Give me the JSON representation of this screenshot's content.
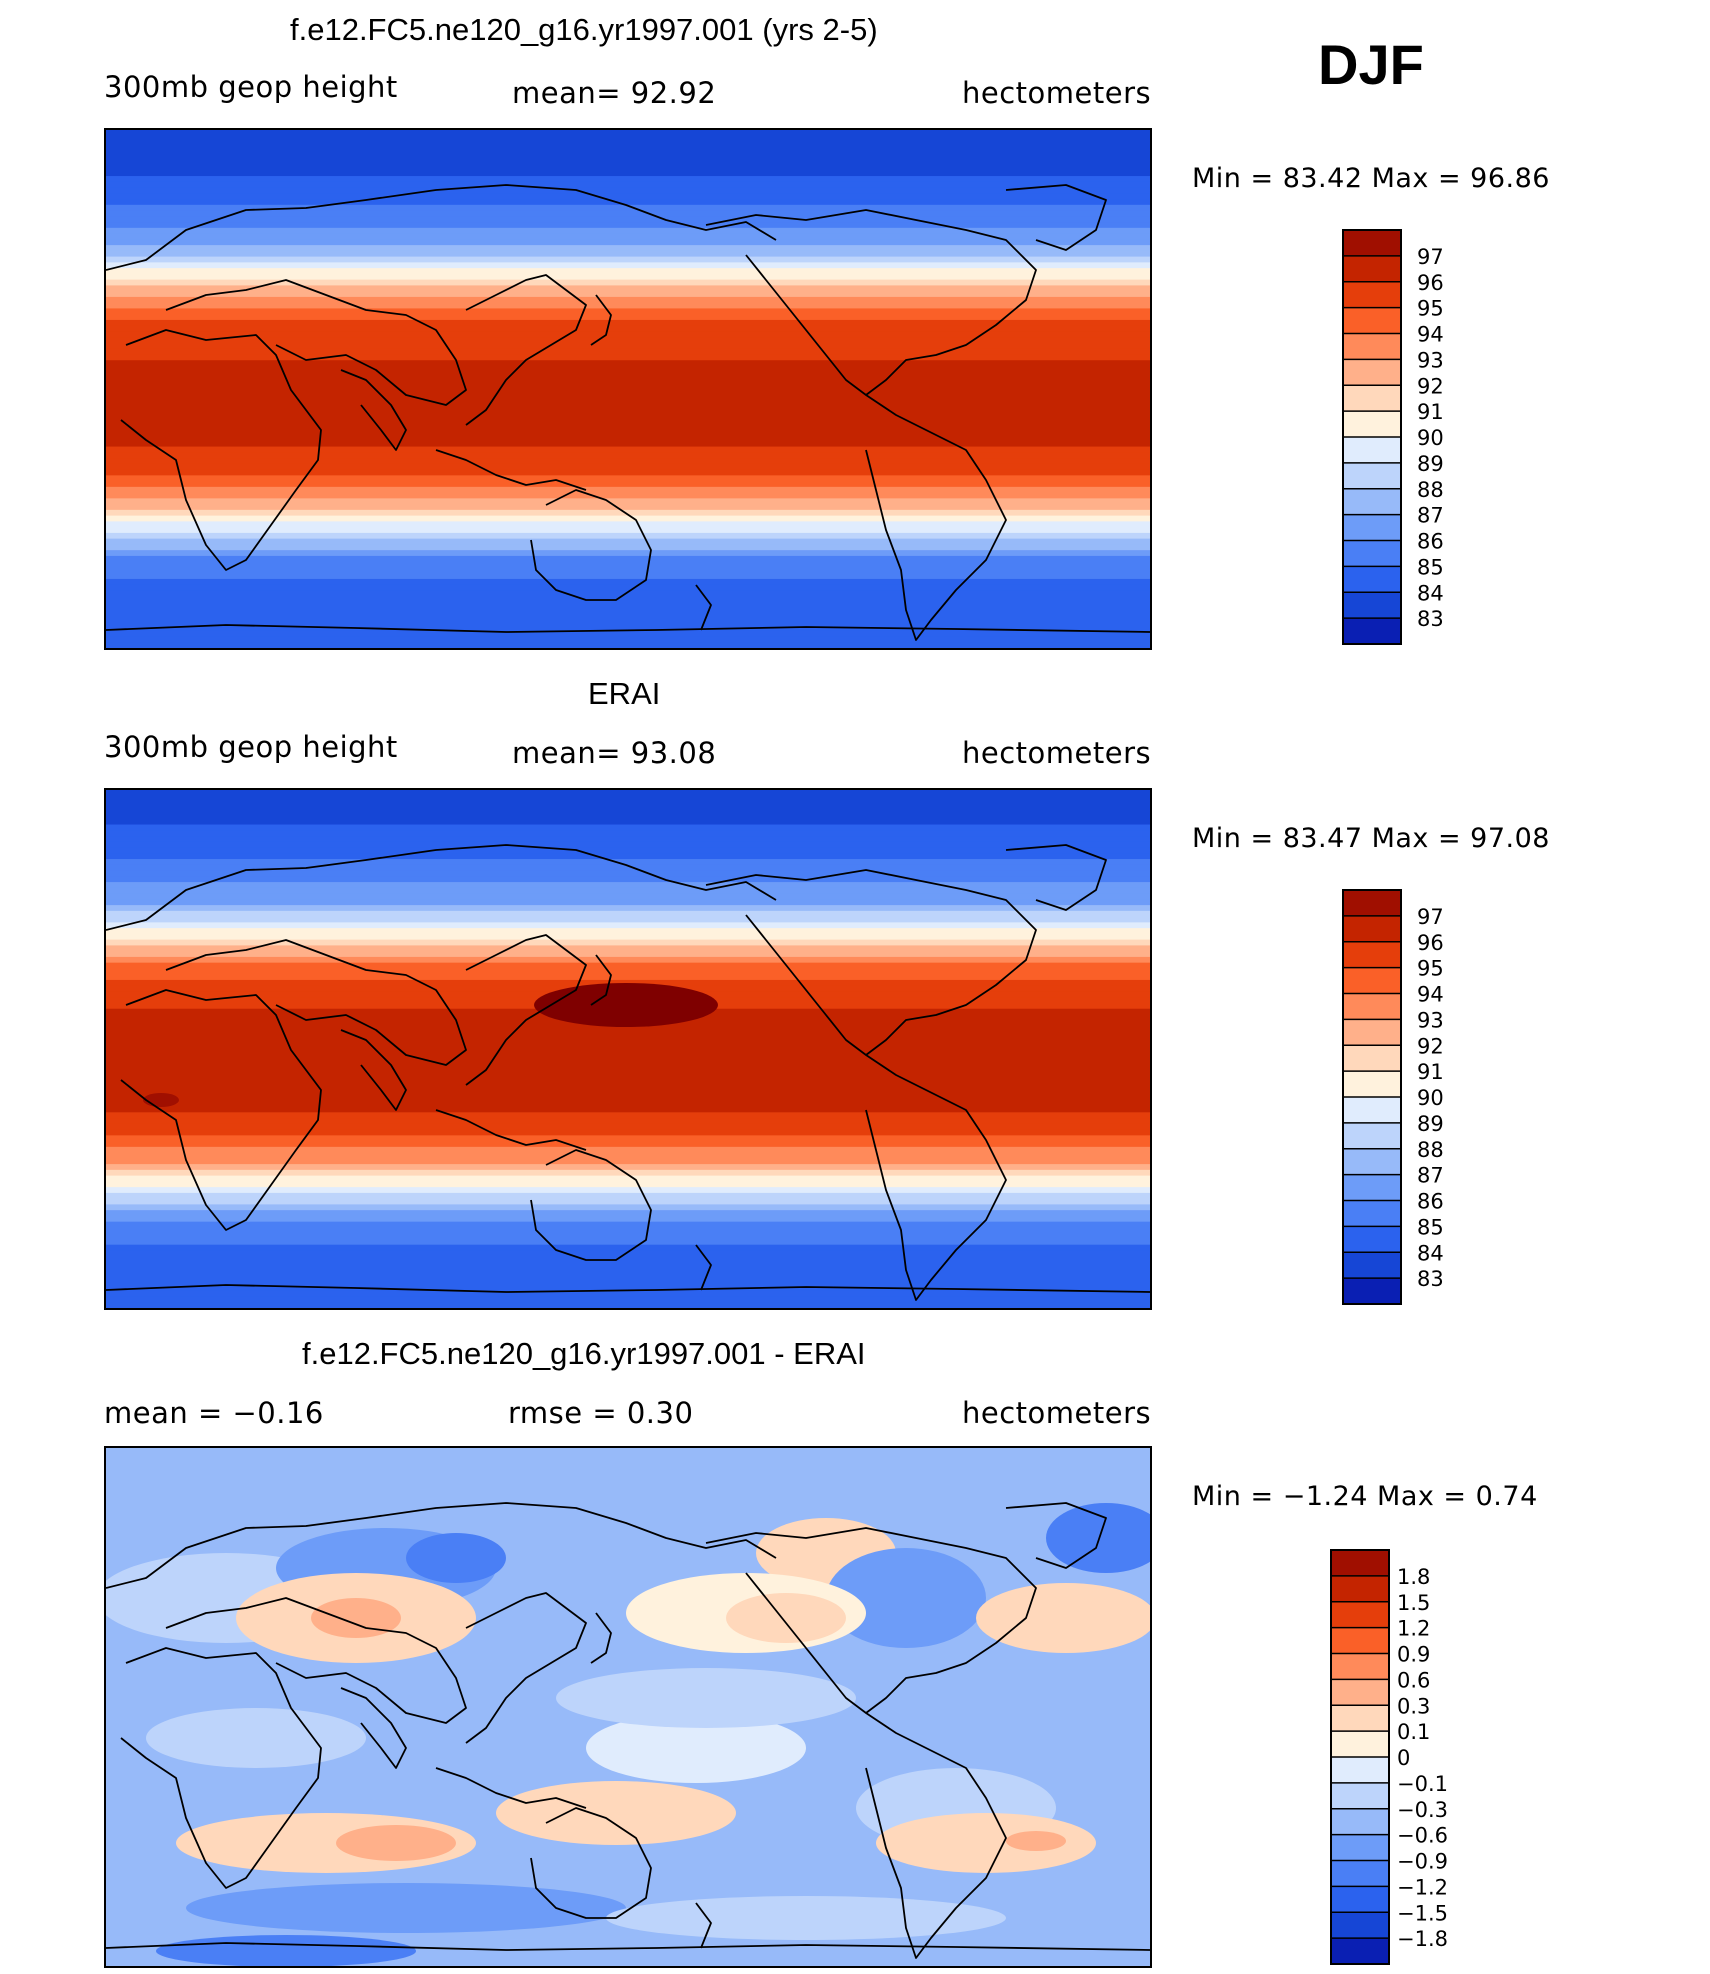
{
  "season": "DJF",
  "colors": {
    "height_scale": [
      "#00007f",
      "#0a1fb3",
      "#1646d6",
      "#2b62ee",
      "#4a7ff5",
      "#6d9cf8",
      "#97baf9",
      "#bdd4fb",
      "#e0ecfd",
      "#fff2dd",
      "#ffd8bb",
      "#ffb08a",
      "#ff8a5a",
      "#fa6028",
      "#e53e0b",
      "#c42400",
      "#a00f00",
      "#7f0000"
    ],
    "diff_scale": [
      "#00007f",
      "#0a1fb3",
      "#1646d6",
      "#2b62ee",
      "#4a7ff5",
      "#6d9cf8",
      "#97baf9",
      "#bdd4fb",
      "#e0ecfd",
      "#fff2dd",
      "#ffd8bb",
      "#ffb08a",
      "#ff8a5a",
      "#fa6028",
      "#e53e0b",
      "#c42400",
      "#a00f00",
      "#7f0000"
    ]
  },
  "chart_data": [
    {
      "type": "heatmap",
      "title": "f.e12.FC5.ne120_g16.yr1997.001 (yrs 2-5)",
      "left_label": "300mb  geop  height",
      "mean_label": "mean=   92.92",
      "units": "hectometers",
      "minmax_label": "Min  =    83.42  Max  =    96.86",
      "min": 83.42,
      "max": 96.86,
      "levels": [
        "97",
        "96",
        "95",
        "94",
        "93",
        "92",
        "91",
        "90",
        "89",
        "88",
        "87",
        "86",
        "85",
        "84",
        "83"
      ],
      "profile": [
        {
          "lat": 90,
          "value": 83.3
        },
        {
          "lat": 70,
          "value": 84.2
        },
        {
          "lat": 50,
          "value": 86.9
        },
        {
          "lat": 40,
          "value": 90.4
        },
        {
          "lat": 30,
          "value": 93.8
        },
        {
          "lat": 20,
          "value": 95.6
        },
        {
          "lat": 0,
          "value": 96.4
        },
        {
          "lat": -20,
          "value": 96.1
        },
        {
          "lat": -30,
          "value": 94.9
        },
        {
          "lat": -40,
          "value": 92.6
        },
        {
          "lat": -50,
          "value": 88.8
        },
        {
          "lat": -60,
          "value": 85.6
        },
        {
          "lat": -70,
          "value": 84.6
        },
        {
          "lat": -90,
          "value": 84.2
        }
      ]
    },
    {
      "type": "heatmap",
      "title": "ERAI",
      "left_label": "300mb  geop  height",
      "mean_label": "mean=   93.08",
      "units": "hectometers",
      "minmax_label": "Min  =    83.47  Max  =    97.08",
      "min": 83.47,
      "max": 97.08,
      "levels": [
        "97",
        "96",
        "95",
        "94",
        "93",
        "92",
        "91",
        "90",
        "89",
        "88",
        "87",
        "86",
        "85",
        "84",
        "83"
      ],
      "profile": [
        {
          "lat": 90,
          "value": 83.4
        },
        {
          "lat": 70,
          "value": 84.4
        },
        {
          "lat": 50,
          "value": 87.1
        },
        {
          "lat": 40,
          "value": 90.6
        },
        {
          "lat": 30,
          "value": 94.0
        },
        {
          "lat": 20,
          "value": 95.8
        },
        {
          "lat": 0,
          "value": 96.5
        },
        {
          "lat": -20,
          "value": 96.3
        },
        {
          "lat": -30,
          "value": 95.1
        },
        {
          "lat": -40,
          "value": 92.9
        },
        {
          "lat": -50,
          "value": 89.0
        },
        {
          "lat": -60,
          "value": 85.8
        },
        {
          "lat": -70,
          "value": 84.7
        },
        {
          "lat": -90,
          "value": 84.3
        }
      ]
    },
    {
      "type": "heatmap",
      "title": "f.e12.FC5.ne120_g16.yr1997.001 - ERAI",
      "left_label": "mean  =    −0.16",
      "mean_label": "rmse  =     0.30",
      "units": "hectometers",
      "minmax_label": "Min  =    −1.24  Max  =      0.74",
      "min": -1.24,
      "max": 0.74,
      "levels": [
        "1.8",
        "1.5",
        "1.2",
        "0.9",
        "0.6",
        "0.3",
        "0.1",
        "0",
        "−0.1",
        "−0.3",
        "−0.6",
        "−0.9",
        "−1.2",
        "−1.5",
        "−1.8"
      ],
      "profile": [
        {
          "lat": 90,
          "value": -0.35
        },
        {
          "lat": 60,
          "value": -0.45
        },
        {
          "lat": 30,
          "value": -0.05
        },
        {
          "lat": 10,
          "value": -0.25
        },
        {
          "lat": -10,
          "value": -0.3
        },
        {
          "lat": -40,
          "value": 0.15
        },
        {
          "lat": -60,
          "value": -0.35
        },
        {
          "lat": -90,
          "value": -0.4
        }
      ]
    }
  ]
}
